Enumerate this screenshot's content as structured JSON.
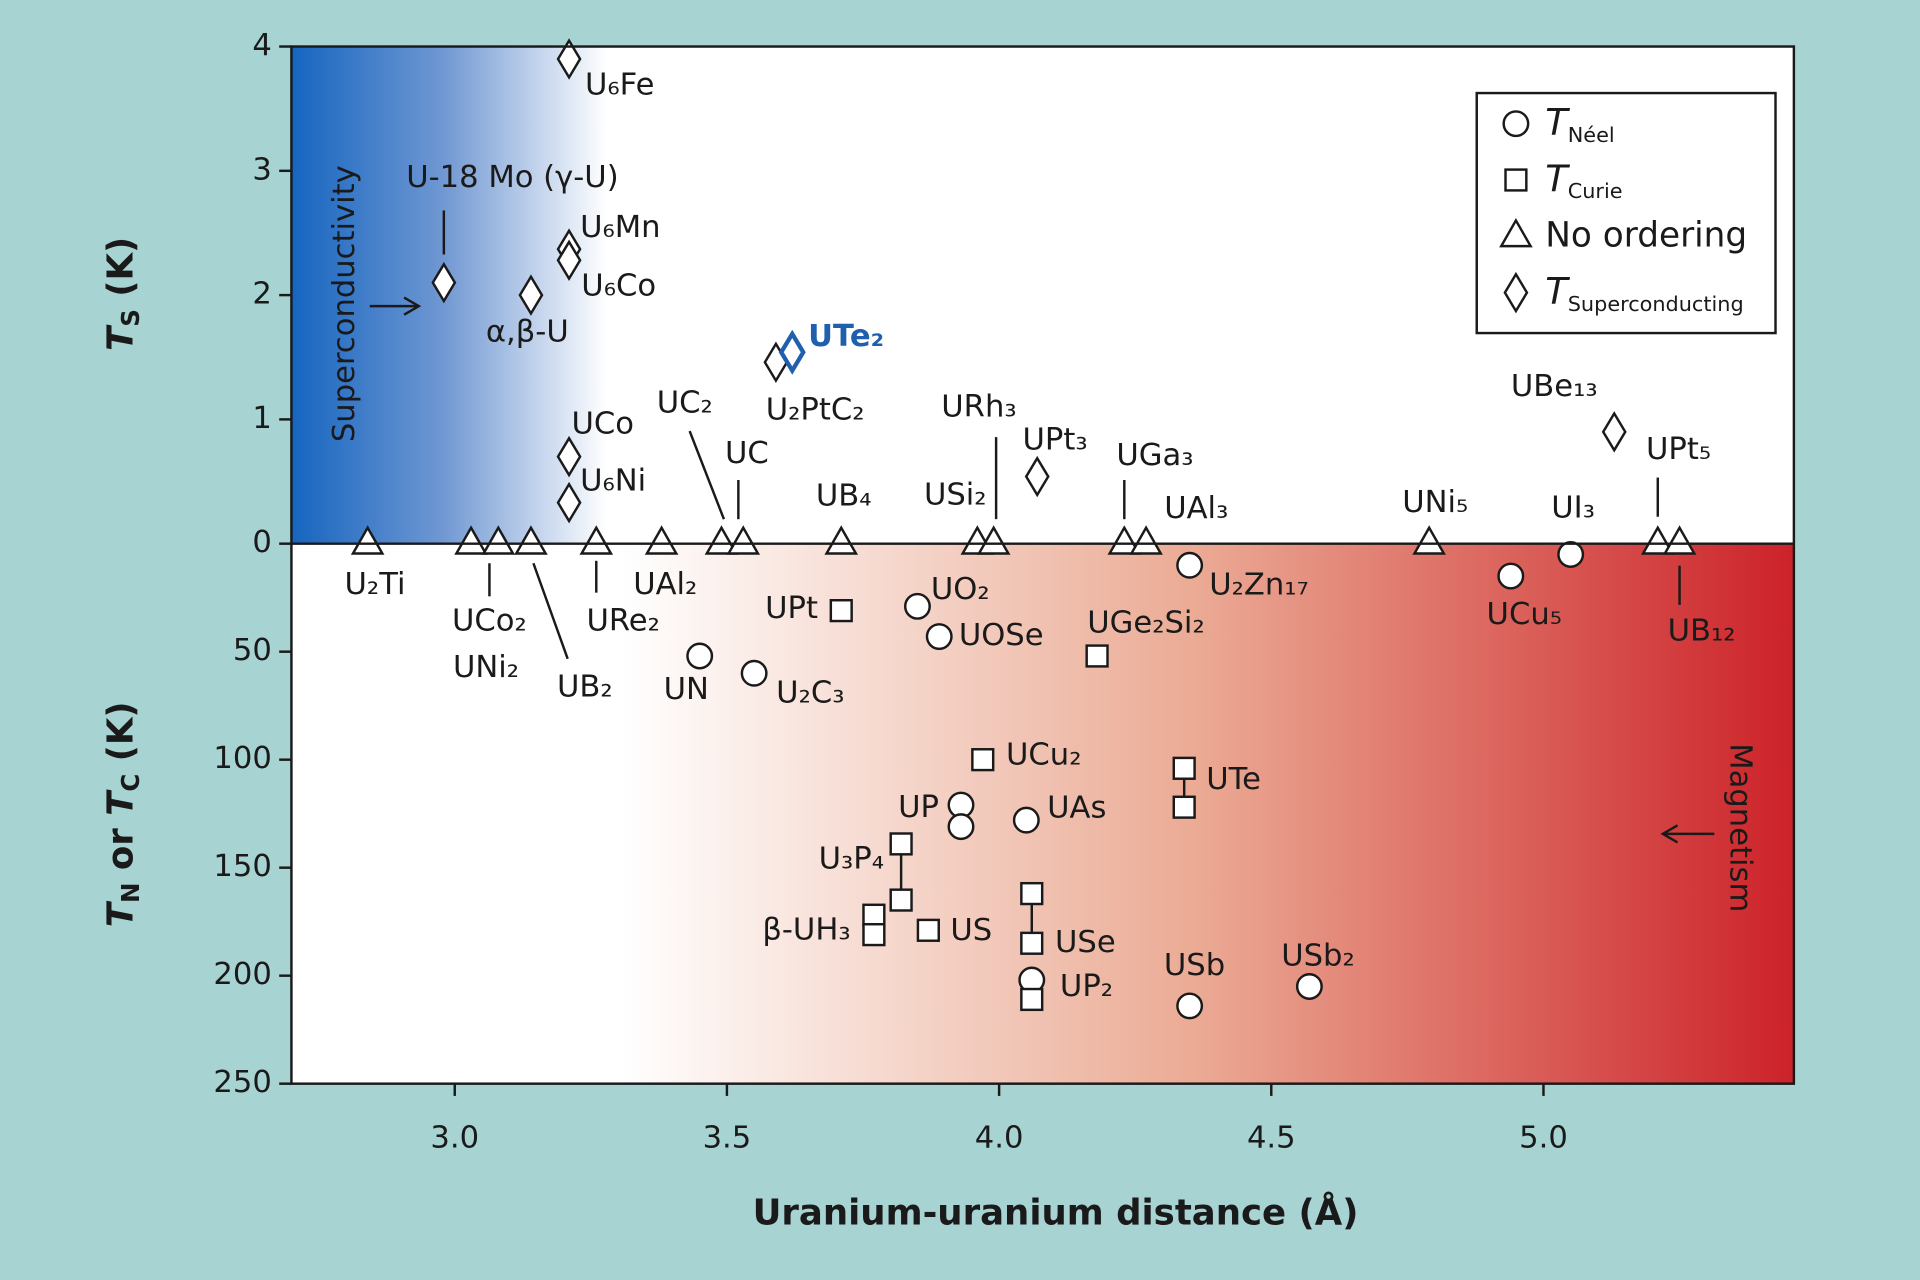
{
  "chart_data": {
    "type": "scatter",
    "x_label": "Uranium-uranium distance (Å)",
    "y_label": [
      {
        "text": "T",
        "italic": true
      },
      {
        "text": "S",
        "sub": true
      },
      {
        "text": " (K)"
      }
    ],
    "y2_label": [
      {
        "text": "T",
        "italic": true
      },
      {
        "text": "N",
        "sub": true
      },
      {
        "text": " or "
      },
      {
        "text": "T",
        "italic": true
      },
      {
        "text": "C",
        "sub": true
      },
      {
        "text": " (K)"
      }
    ],
    "xlim": [
      2.7,
      5.46
    ],
    "xticks": [
      {
        "value": 3,
        "label": "3.0"
      },
      {
        "value": 3.5,
        "label": "3.5"
      },
      {
        "value": 4,
        "label": "4.0"
      },
      {
        "value": 4.5,
        "label": "4.5"
      },
      {
        "value": 5,
        "label": "5.0"
      }
    ],
    "ylim": [
      0,
      4
    ],
    "yticks": [
      0,
      1,
      2,
      3,
      4
    ],
    "y2lim": [
      0,
      250
    ],
    "y2ticks": [
      50,
      100,
      150,
      200,
      250
    ],
    "annotations": [
      "Superconductivity",
      "Magnetism"
    ],
    "legend": "upper right",
    "series": [
      {
        "name": "T",
        "subscript": "Néel",
        "marker": "circle",
        "axis": "y2",
        "color": "#1a1a1a",
        "x": [
          3.85,
          3.89,
          3.45,
          3.55,
          3.93,
          3.93,
          4.05,
          4.06,
          4.35,
          4.57,
          4.35,
          4.94,
          5.05
        ],
        "values": [
          29,
          43,
          52,
          60,
          121,
          131,
          128,
          202,
          214,
          205,
          10,
          15,
          5
        ],
        "labels": [
          "UO₂",
          "UOSe",
          "UN",
          "U₂C₃",
          "UP",
          null,
          "UAs",
          "UP₂",
          "USb",
          "USb₂",
          "U₂Zn₁₇",
          "UCu₅",
          "UI₃"
        ]
      },
      {
        "name": "T",
        "subscript": "Curie",
        "marker": "square",
        "axis": "y2",
        "color": "#1a1a1a",
        "x": [
          3.71,
          4.18,
          3.97,
          4.34,
          4.34,
          3.82,
          3.82,
          3.77,
          3.77,
          3.87,
          4.06,
          4.06,
          4.06
        ],
        "values": [
          31,
          52,
          100,
          104,
          122,
          139,
          165,
          172,
          181,
          179,
          162,
          185,
          211
        ],
        "labels": [
          "UPt",
          "UGe₂Si₂",
          "UCu₂",
          "UTe",
          null,
          "U₃P₄",
          null,
          "β-UH₃",
          null,
          "US",
          null,
          "USe",
          null
        ]
      },
      {
        "name": "No ordering",
        "marker": "triangle",
        "color": "#1a1a1a",
        "x": [
          2.84,
          3.03,
          3.08,
          3.14,
          3.26,
          3.38,
          3.49,
          3.53,
          3.71,
          3.96,
          3.99,
          4.23,
          4.27,
          4.79,
          5.21,
          5.25
        ],
        "values": [
          0,
          0,
          0,
          0,
          0,
          0,
          0,
          0,
          0,
          0,
          0,
          0,
          0,
          0,
          0,
          0
        ],
        "labels": [
          "U₂Ti",
          "UCo₂",
          "UNi₂",
          "UB₂",
          "URe₂",
          "UAl₂",
          "UC₂",
          "UC",
          "UB₄",
          "USi₂",
          "URh₃",
          "UGa₃",
          "UAl₃",
          "UNi₅",
          "UPt₅",
          "UB₁₂"
        ]
      },
      {
        "name": "T",
        "subscript": "Superconducting",
        "marker": "diamond",
        "color": "#1a1a1a",
        "x": [
          3.21,
          2.98,
          3.21,
          3.21,
          3.14,
          3.59,
          3.62,
          3.21,
          3.21,
          4.07,
          5.13
        ],
        "values": [
          3.9,
          2.1,
          2.37,
          2.28,
          2.0,
          1.46,
          1.54,
          0.7,
          0.33,
          0.54,
          0.9
        ],
        "labels": [
          "U₆Fe",
          "U-18 Mo (γ-U)",
          "U₆Mn",
          "U₆Co",
          "α,β-U",
          "U₂PtC₂",
          "UTe₂",
          "UCo",
          "U₆Ni",
          "UPt₃",
          "UBe₁₃"
        ],
        "colors": [
          "#1a1a1a",
          "#1a1a1a",
          "#1a1a1a",
          "#1a1a1a",
          "#1a1a1a",
          "#1a1a1a",
          "#1f5fae",
          "#1a1a1a",
          "#1a1a1a",
          "#1a1a1a",
          "#1a1a1a"
        ]
      }
    ]
  }
}
